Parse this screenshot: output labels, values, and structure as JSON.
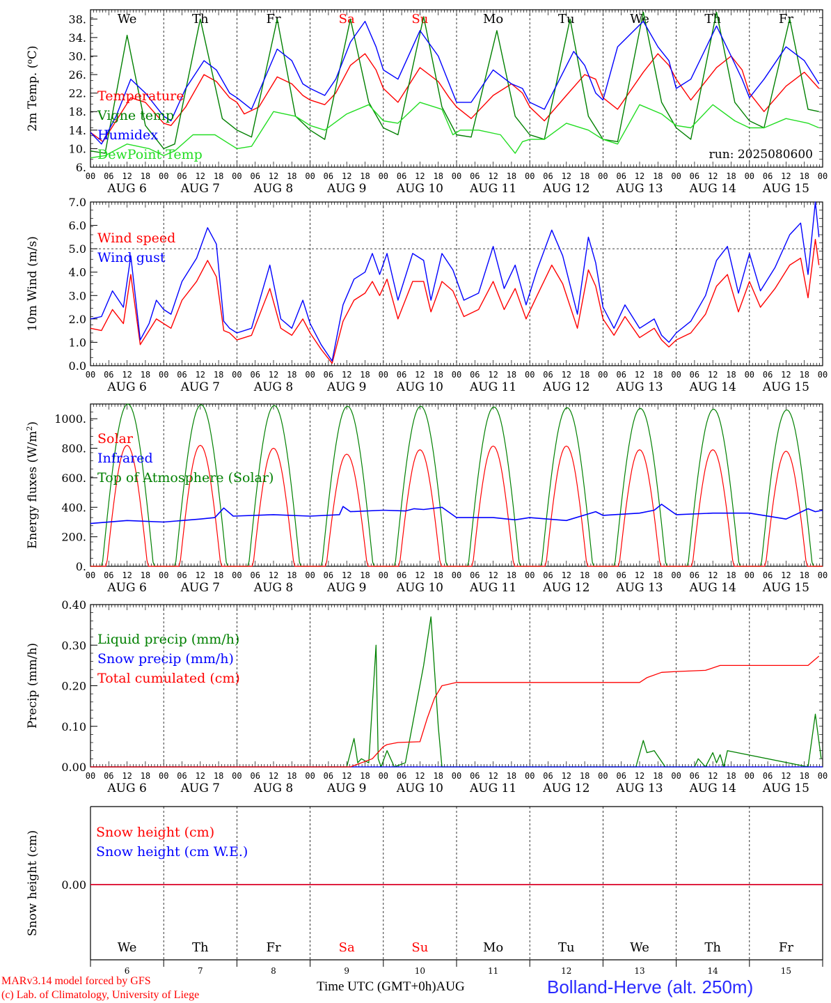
{
  "run_label": "run: 2025080600",
  "footer": {
    "model": "MARv3.14 model forced by GFS",
    "lab": "(c) Lab. of Climatology, University of Liege",
    "time_axis": "Time UTC (GMT+0h)AUG",
    "station": "Bolland-Herve (alt. 250m)"
  },
  "weekdays": [
    "We",
    "Th",
    "Fr",
    "Sa",
    "Su",
    "Mo",
    "Tu",
    "We",
    "Th",
    "Fr"
  ],
  "weekend_flags": [
    false,
    false,
    false,
    true,
    true,
    false,
    false,
    false,
    false,
    false
  ],
  "date_labels": [
    "AUG  6",
    "AUG  7",
    "AUG  8",
    "AUG  9",
    "AUG 10",
    "AUG 11",
    "AUG 12",
    "AUG 13",
    "AUG 14",
    "AUG 15"
  ],
  "day_numbers": [
    "6",
    "7",
    "8",
    "9",
    "10",
    "11",
    "12",
    "13",
    "14",
    "15"
  ],
  "hour_ticks": [
    "00",
    "06",
    "12",
    "18"
  ],
  "last_tick": "00",
  "colors": {
    "red": "#ff0000",
    "green": "#008000",
    "blue": "#0000ff",
    "lightgreen": "#22dd22"
  },
  "chart_data": [
    {
      "type": "line",
      "ylabel": "2m Temp. (oC)",
      "ylim": [
        6,
        40
      ],
      "yticks": [
        "6.",
        "10.",
        "14.",
        "18.",
        "22.",
        "26.",
        "30.",
        "34.",
        "38."
      ],
      "x_unit": "days since 2025-08-06 00 UTC",
      "series": [
        {
          "name": "Temperature",
          "color": "red",
          "x": [
            0,
            0.17,
            0.35,
            0.55,
            0.75,
            1.0,
            1.1,
            1.3,
            1.55,
            1.72,
            1.9,
            2.0,
            2.1,
            2.3,
            2.55,
            2.75,
            2.9,
            3.0,
            3.2,
            3.35,
            3.55,
            3.75,
            3.9,
            4.0,
            4.2,
            4.5,
            4.75,
            4.9,
            5.0,
            5.2,
            5.5,
            5.75,
            5.9,
            6.0,
            6.2,
            6.5,
            6.75,
            6.9,
            7.0,
            7.2,
            7.55,
            7.75,
            7.9,
            8.0,
            8.2,
            8.55,
            8.75,
            8.9,
            9.0,
            9.2,
            9.5,
            9.75,
            9.95
          ],
          "y": [
            13.5,
            11.5,
            16,
            21,
            20,
            15.5,
            15,
            19,
            26,
            24.5,
            21,
            20,
            17.5,
            19,
            25.5,
            24,
            21.5,
            20.5,
            19.5,
            22,
            28,
            30.5,
            27,
            23,
            20,
            27.5,
            24.5,
            21,
            19,
            16.5,
            21.5,
            24,
            22,
            19,
            16,
            21.5,
            26,
            25,
            21,
            18.5,
            26.5,
            30.5,
            28,
            25,
            20.5,
            27.5,
            30,
            27,
            22,
            18,
            23.5,
            26.5,
            23
          ]
        },
        {
          "name": "Vigne temp",
          "color": "green",
          "x": [
            0,
            0.2,
            0.5,
            0.75,
            1.0,
            1.15,
            1.5,
            1.8,
            2.0,
            2.2,
            2.55,
            2.8,
            3.0,
            3.2,
            3.55,
            3.8,
            4.0,
            4.2,
            4.55,
            4.8,
            5.0,
            5.2,
            5.55,
            5.8,
            6.0,
            6.2,
            6.55,
            6.8,
            7.0,
            7.2,
            7.55,
            7.8,
            8.0,
            8.2,
            8.55,
            8.8,
            9.0,
            9.2,
            9.55,
            9.8,
            9.95
          ],
          "y": [
            9.5,
            9,
            34.5,
            15,
            10,
            11,
            38,
            16.5,
            14,
            12.5,
            38,
            17,
            14,
            12,
            38,
            20,
            14.5,
            13,
            38.5,
            19,
            13,
            12.5,
            35.5,
            17,
            13,
            12,
            38,
            17,
            12,
            11.5,
            39.5,
            20,
            14.5,
            12,
            39.5,
            20,
            16,
            14.5,
            38,
            18.5,
            18
          ]
        },
        {
          "name": "Humidex",
          "color": "blue",
          "x": [
            0,
            0.15,
            0.35,
            0.55,
            0.75,
            1.0,
            1.1,
            1.3,
            1.55,
            1.72,
            1.9,
            2.0,
            2.2,
            2.55,
            2.75,
            2.9,
            3.0,
            3.2,
            3.35,
            3.55,
            3.75,
            3.9,
            4.0,
            4.2,
            4.5,
            4.75,
            4.9,
            5.0,
            5.2,
            5.5,
            5.75,
            5.9,
            6.0,
            6.2,
            6.6,
            6.75,
            6.9,
            7.0,
            7.2,
            7.55,
            7.75,
            7.9,
            8.0,
            8.2,
            8.55,
            8.75,
            8.9,
            9.0,
            9.2,
            9.5,
            9.75,
            9.95
          ],
          "y": [
            13.5,
            11,
            17,
            25,
            22,
            17,
            16,
            23,
            29,
            27,
            22,
            21,
            18.5,
            31.5,
            29,
            24,
            23,
            21.5,
            25,
            33,
            37.5,
            32,
            27,
            25,
            35.5,
            30,
            24,
            20,
            20,
            27,
            24,
            23,
            20,
            18.5,
            31,
            28,
            22,
            20.5,
            32,
            37.5,
            32,
            29,
            23,
            25,
            36.5,
            30,
            25,
            21,
            25,
            32,
            29,
            24
          ]
        },
        {
          "name": "DewPoint Temp",
          "color": "lightgreen",
          "x": [
            0,
            0.2,
            0.5,
            0.8,
            1.0,
            1.15,
            1.4,
            1.7,
            1.9,
            2.0,
            2.2,
            2.5,
            2.8,
            3.0,
            3.2,
            3.5,
            3.8,
            4.0,
            4.2,
            4.5,
            4.8,
            4.95,
            5.05,
            5.3,
            5.6,
            5.8,
            5.9,
            6.0,
            6.2,
            6.5,
            6.8,
            7.0,
            7.2,
            7.5,
            7.8,
            8.0,
            8.2,
            8.5,
            8.8,
            9.0,
            9.2,
            9.5,
            9.8,
            9.95
          ],
          "y": [
            8,
            8.5,
            11,
            10,
            8.5,
            9.5,
            13,
            13,
            11,
            10,
            10.5,
            18,
            17,
            15,
            14,
            17.5,
            19.5,
            16,
            15.5,
            20,
            18.5,
            13,
            14,
            14,
            13,
            9,
            11.5,
            12,
            12,
            15.5,
            14,
            12,
            11,
            19.5,
            17.5,
            15,
            14.5,
            19.5,
            16,
            14.5,
            14.5,
            16.5,
            15.5,
            14.5
          ]
        }
      ]
    },
    {
      "type": "line",
      "ylabel": "10m Wind (m/s)",
      "ylim": [
        0,
        7
      ],
      "yticks": [
        "0.0",
        "1.0",
        "2.0",
        "3.0",
        "4.0",
        "5.0",
        "6.0",
        "7.0"
      ],
      "reference_line": 5.0,
      "series": [
        {
          "name": "Wind speed",
          "color": "red",
          "x": [
            0,
            0.15,
            0.3,
            0.45,
            0.55,
            0.68,
            0.8,
            0.9,
            1.0,
            1.1,
            1.25,
            1.45,
            1.6,
            1.72,
            1.82,
            1.9,
            2.0,
            2.2,
            2.45,
            2.6,
            2.75,
            2.9,
            3.0,
            3.15,
            3.3,
            3.45,
            3.6,
            3.75,
            3.85,
            3.95,
            4.05,
            4.2,
            4.4,
            4.55,
            4.65,
            4.8,
            4.95,
            5.1,
            5.3,
            5.5,
            5.65,
            5.8,
            5.95,
            6.1,
            6.3,
            6.45,
            6.65,
            6.8,
            6.9,
            7.0,
            7.15,
            7.3,
            7.5,
            7.7,
            7.8,
            7.9,
            8.0,
            8.2,
            8.4,
            8.55,
            8.7,
            8.85,
            9.0,
            9.15,
            9.35,
            9.55,
            9.7,
            9.8,
            9.9,
            9.95
          ],
          "y": [
            1.6,
            1.5,
            2.4,
            1.8,
            3.9,
            0.9,
            1.5,
            2.0,
            1.8,
            1.6,
            2.8,
            3.6,
            4.5,
            3.8,
            1.5,
            1.4,
            1.1,
            1.3,
            3.3,
            1.6,
            1.3,
            2.0,
            1.4,
            0.7,
            0.1,
            1.9,
            2.8,
            3.1,
            3.6,
            3.0,
            3.7,
            2.0,
            3.6,
            3.6,
            2.3,
            3.6,
            3.2,
            2.1,
            2.4,
            3.6,
            2.4,
            3.3,
            2.0,
            3.0,
            4.3,
            3.5,
            1.6,
            4.1,
            3.4,
            2.0,
            1.3,
            2.1,
            1.2,
            1.6,
            1.1,
            0.8,
            1.1,
            1.4,
            2.2,
            3.4,
            3.9,
            2.3,
            3.6,
            2.5,
            3.3,
            4.3,
            4.6,
            2.9,
            5.4,
            4.3
          ]
        },
        {
          "name": "Wind gust",
          "color": "blue",
          "x": [
            0,
            0.15,
            0.3,
            0.45,
            0.55,
            0.68,
            0.8,
            0.9,
            1.0,
            1.1,
            1.25,
            1.45,
            1.6,
            1.72,
            1.82,
            1.9,
            2.0,
            2.2,
            2.45,
            2.6,
            2.75,
            2.9,
            3.0,
            3.15,
            3.3,
            3.45,
            3.6,
            3.75,
            3.85,
            3.95,
            4.05,
            4.2,
            4.4,
            4.55,
            4.65,
            4.8,
            4.95,
            5.1,
            5.3,
            5.5,
            5.65,
            5.8,
            5.95,
            6.1,
            6.3,
            6.45,
            6.65,
            6.8,
            6.9,
            7.0,
            7.15,
            7.3,
            7.5,
            7.7,
            7.8,
            7.9,
            8.0,
            8.2,
            8.4,
            8.55,
            8.7,
            8.85,
            9.0,
            9.15,
            9.35,
            9.55,
            9.7,
            9.8,
            9.9,
            9.95
          ],
          "y": [
            2.0,
            2.1,
            3.2,
            2.5,
            4.7,
            1.1,
            1.8,
            2.8,
            2.4,
            2.2,
            3.6,
            4.6,
            5.9,
            5.2,
            1.9,
            1.6,
            1.4,
            1.6,
            4.3,
            2.0,
            1.6,
            2.8,
            1.8,
            0.9,
            0.2,
            2.6,
            3.7,
            4.0,
            4.8,
            3.9,
            4.8,
            2.8,
            4.8,
            4.5,
            2.8,
            4.8,
            4.1,
            2.8,
            3.1,
            5.1,
            3.3,
            4.3,
            2.6,
            4.1,
            5.8,
            4.7,
            2.2,
            5.5,
            4.4,
            2.5,
            1.6,
            2.6,
            1.6,
            2.0,
            1.3,
            1.0,
            1.4,
            1.9,
            3.0,
            4.5,
            5.1,
            3.1,
            4.8,
            3.2,
            4.2,
            5.6,
            6.1,
            3.9,
            7.0,
            5.5
          ]
        }
      ]
    },
    {
      "type": "line",
      "ylabel": "Energy fluxes (W/m2)",
      "ylim": [
        0,
        1100
      ],
      "yticks": [
        "0.",
        "200.",
        "400.",
        "600.",
        "800.",
        "1000."
      ],
      "series": [
        {
          "name": "Solar",
          "color": "red",
          "daily_peaks": [
            820,
            820,
            800,
            760,
            790,
            815,
            815,
            790,
            790,
            780
          ]
        },
        {
          "name": "Infrared",
          "color": "blue",
          "x": [
            0,
            0.5,
            1.0,
            1.5,
            1.7,
            1.82,
            1.95,
            2.5,
            3.0,
            3.4,
            3.45,
            3.55,
            4.0,
            4.3,
            4.42,
            4.55,
            4.8,
            5.0,
            5.5,
            5.8,
            6.0,
            6.5,
            6.9,
            7.0,
            7.5,
            7.7,
            7.8,
            8.0,
            8.5,
            9.0,
            9.5,
            9.8,
            9.9,
            10.0
          ],
          "y": [
            290,
            310,
            300,
            320,
            330,
            395,
            340,
            350,
            340,
            350,
            405,
            370,
            380,
            375,
            390,
            385,
            400,
            330,
            330,
            315,
            330,
            310,
            370,
            345,
            360,
            380,
            420,
            350,
            360,
            360,
            320,
            390,
            370,
            380
          ]
        },
        {
          "name": "Top of Atmosphere (Solar)",
          "color": "green",
          "daily_peaks": [
            1100,
            1095,
            1090,
            1085,
            1085,
            1080,
            1075,
            1070,
            1065,
            1060
          ]
        }
      ]
    },
    {
      "type": "line",
      "ylabel": "Precip (mm/h)",
      "ylim": [
        0,
        0.4
      ],
      "yticks": [
        "0.00",
        "0.10",
        "0.20",
        "0.30",
        "0.40"
      ],
      "series": [
        {
          "name": "Liquid precip (mm/h)",
          "color": "green",
          "x": [
            0,
            3.5,
            3.6,
            3.65,
            3.7,
            3.8,
            3.9,
            3.93,
            3.97,
            4.05,
            4.15,
            4.3,
            4.55,
            4.65,
            4.75,
            4.8,
            4.95,
            5.1,
            5.5,
            7.45,
            7.55,
            7.6,
            7.7,
            7.85,
            7.95,
            8.25,
            8.3,
            8.4,
            8.5,
            8.55,
            8.6,
            8.65,
            8.7,
            9.8,
            9.9,
            9.98
          ],
          "y": [
            0,
            0,
            0.07,
            0.01,
            0.02,
            0.01,
            0.3,
            0.02,
            0.0,
            0.04,
            0.0,
            0.01,
            0.25,
            0.37,
            0.1,
            0.0,
            0.0,
            0.0,
            0.0,
            0.0,
            0.065,
            0.035,
            0.04,
            0.0,
            0.0,
            0.0,
            0.02,
            0.0,
            0.035,
            0.01,
            0.03,
            0.0,
            0.04,
            0.0,
            0.13,
            0.02
          ]
        },
        {
          "name": "Snow precip (mm/h)",
          "color": "blue",
          "x": [
            0,
            10
          ],
          "y": [
            0,
            0
          ]
        },
        {
          "name": "Total cumulated (cm)",
          "color": "red",
          "x": [
            0,
            3.55,
            3.85,
            4.0,
            4.05,
            4.2,
            4.5,
            4.6,
            4.7,
            4.8,
            5.0,
            7.5,
            7.6,
            7.8,
            8.0,
            8.4,
            8.6,
            8.8,
            9.8,
            9.95
          ],
          "y": [
            0,
            0,
            0.02,
            0.05,
            0.055,
            0.06,
            0.062,
            0.12,
            0.17,
            0.2,
            0.208,
            0.208,
            0.22,
            0.233,
            0.235,
            0.238,
            0.25,
            0.25,
            0.25,
            0.273
          ]
        }
      ]
    },
    {
      "type": "line",
      "ylabel": "Snow height (cm)",
      "yticks": [
        "0.00"
      ],
      "series": [
        {
          "name": "Snow height (cm)",
          "color": "red",
          "x": [
            0,
            10
          ],
          "y": [
            0,
            0
          ]
        },
        {
          "name": "Snow height (cm W.E.)",
          "color": "blue",
          "x": [
            0,
            10
          ],
          "y": [
            0,
            0
          ]
        }
      ]
    }
  ]
}
